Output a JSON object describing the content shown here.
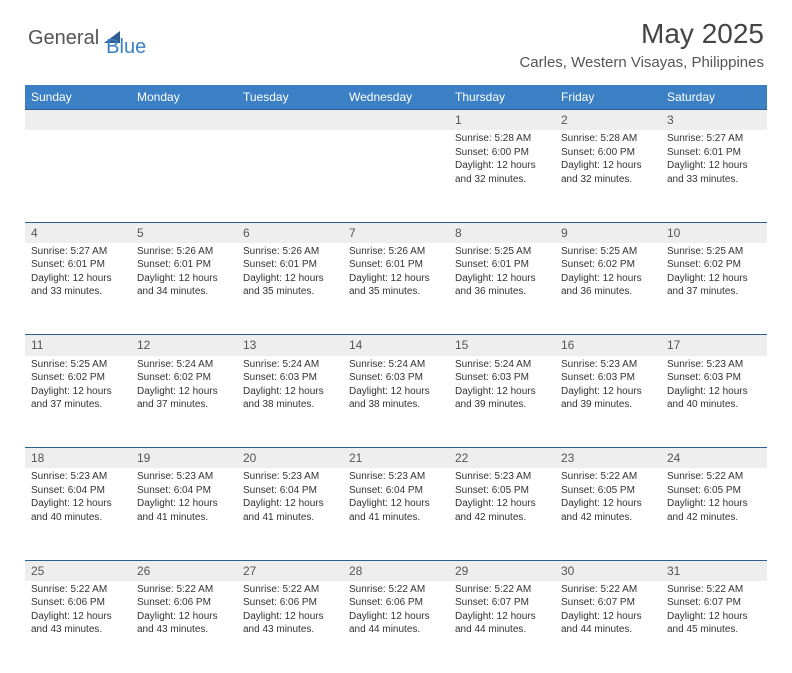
{
  "brand": {
    "part1": "General",
    "part2": "Blue"
  },
  "title": "May 2025",
  "location": "Carles, Western Visayas, Philippines",
  "colors": {
    "header_bg": "#3b7fc4",
    "header_text": "#ffffff",
    "daynum_bg": "#eeeeee",
    "rule": "#2e5e8f",
    "body_text": "#333333",
    "page_bg": "#ffffff"
  },
  "fonts": {
    "family": "Arial",
    "title_size": 28,
    "subtitle_size": 15,
    "header_size": 12,
    "cell_size": 10
  },
  "days_of_week": [
    "Sunday",
    "Monday",
    "Tuesday",
    "Wednesday",
    "Thursday",
    "Friday",
    "Saturday"
  ],
  "weeks": [
    [
      null,
      null,
      null,
      null,
      {
        "n": "1",
        "sr": "5:28 AM",
        "ss": "6:00 PM",
        "dl": "12 hours and 32 minutes."
      },
      {
        "n": "2",
        "sr": "5:28 AM",
        "ss": "6:00 PM",
        "dl": "12 hours and 32 minutes."
      },
      {
        "n": "3",
        "sr": "5:27 AM",
        "ss": "6:01 PM",
        "dl": "12 hours and 33 minutes."
      }
    ],
    [
      {
        "n": "4",
        "sr": "5:27 AM",
        "ss": "6:01 PM",
        "dl": "12 hours and 33 minutes."
      },
      {
        "n": "5",
        "sr": "5:26 AM",
        "ss": "6:01 PM",
        "dl": "12 hours and 34 minutes."
      },
      {
        "n": "6",
        "sr": "5:26 AM",
        "ss": "6:01 PM",
        "dl": "12 hours and 35 minutes."
      },
      {
        "n": "7",
        "sr": "5:26 AM",
        "ss": "6:01 PM",
        "dl": "12 hours and 35 minutes."
      },
      {
        "n": "8",
        "sr": "5:25 AM",
        "ss": "6:01 PM",
        "dl": "12 hours and 36 minutes."
      },
      {
        "n": "9",
        "sr": "5:25 AM",
        "ss": "6:02 PM",
        "dl": "12 hours and 36 minutes."
      },
      {
        "n": "10",
        "sr": "5:25 AM",
        "ss": "6:02 PM",
        "dl": "12 hours and 37 minutes."
      }
    ],
    [
      {
        "n": "11",
        "sr": "5:25 AM",
        "ss": "6:02 PM",
        "dl": "12 hours and 37 minutes."
      },
      {
        "n": "12",
        "sr": "5:24 AM",
        "ss": "6:02 PM",
        "dl": "12 hours and 37 minutes."
      },
      {
        "n": "13",
        "sr": "5:24 AM",
        "ss": "6:03 PM",
        "dl": "12 hours and 38 minutes."
      },
      {
        "n": "14",
        "sr": "5:24 AM",
        "ss": "6:03 PM",
        "dl": "12 hours and 38 minutes."
      },
      {
        "n": "15",
        "sr": "5:24 AM",
        "ss": "6:03 PM",
        "dl": "12 hours and 39 minutes."
      },
      {
        "n": "16",
        "sr": "5:23 AM",
        "ss": "6:03 PM",
        "dl": "12 hours and 39 minutes."
      },
      {
        "n": "17",
        "sr": "5:23 AM",
        "ss": "6:03 PM",
        "dl": "12 hours and 40 minutes."
      }
    ],
    [
      {
        "n": "18",
        "sr": "5:23 AM",
        "ss": "6:04 PM",
        "dl": "12 hours and 40 minutes."
      },
      {
        "n": "19",
        "sr": "5:23 AM",
        "ss": "6:04 PM",
        "dl": "12 hours and 41 minutes."
      },
      {
        "n": "20",
        "sr": "5:23 AM",
        "ss": "6:04 PM",
        "dl": "12 hours and 41 minutes."
      },
      {
        "n": "21",
        "sr": "5:23 AM",
        "ss": "6:04 PM",
        "dl": "12 hours and 41 minutes."
      },
      {
        "n": "22",
        "sr": "5:23 AM",
        "ss": "6:05 PM",
        "dl": "12 hours and 42 minutes."
      },
      {
        "n": "23",
        "sr": "5:22 AM",
        "ss": "6:05 PM",
        "dl": "12 hours and 42 minutes."
      },
      {
        "n": "24",
        "sr": "5:22 AM",
        "ss": "6:05 PM",
        "dl": "12 hours and 42 minutes."
      }
    ],
    [
      {
        "n": "25",
        "sr": "5:22 AM",
        "ss": "6:06 PM",
        "dl": "12 hours and 43 minutes."
      },
      {
        "n": "26",
        "sr": "5:22 AM",
        "ss": "6:06 PM",
        "dl": "12 hours and 43 minutes."
      },
      {
        "n": "27",
        "sr": "5:22 AM",
        "ss": "6:06 PM",
        "dl": "12 hours and 43 minutes."
      },
      {
        "n": "28",
        "sr": "5:22 AM",
        "ss": "6:06 PM",
        "dl": "12 hours and 44 minutes."
      },
      {
        "n": "29",
        "sr": "5:22 AM",
        "ss": "6:07 PM",
        "dl": "12 hours and 44 minutes."
      },
      {
        "n": "30",
        "sr": "5:22 AM",
        "ss": "6:07 PM",
        "dl": "12 hours and 44 minutes."
      },
      {
        "n": "31",
        "sr": "5:22 AM",
        "ss": "6:07 PM",
        "dl": "12 hours and 45 minutes."
      }
    ]
  ],
  "labels": {
    "sunrise": "Sunrise: ",
    "sunset": "Sunset: ",
    "daylight": "Daylight: "
  }
}
